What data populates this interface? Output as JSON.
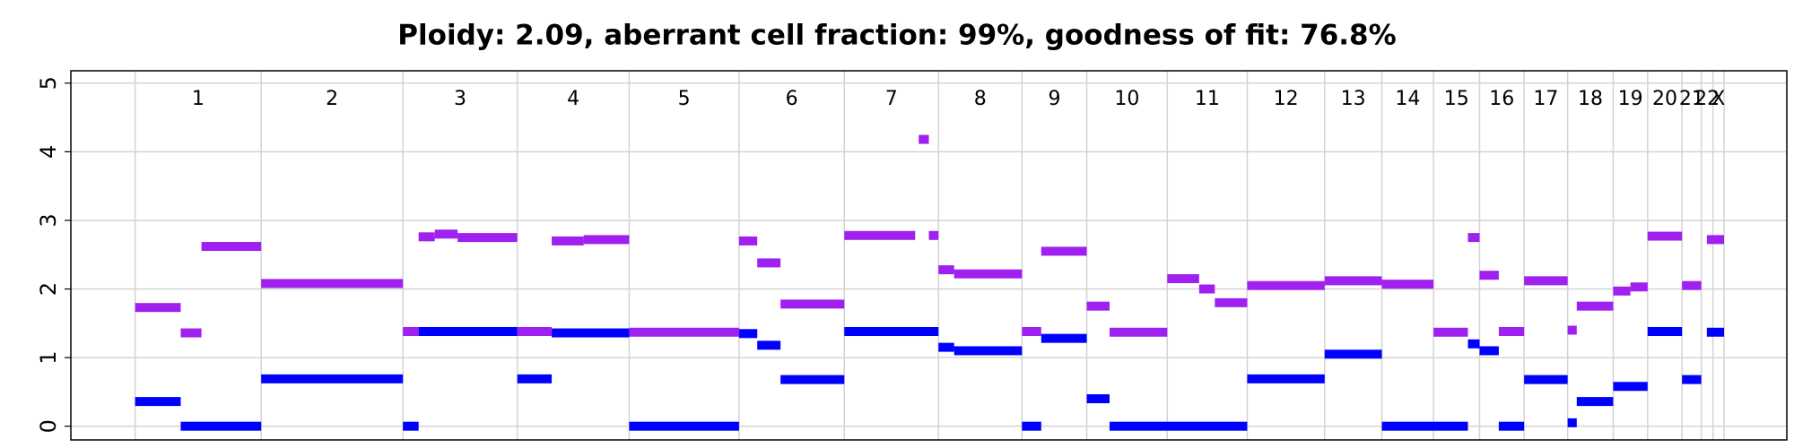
{
  "chart_data": {
    "type": "segment",
    "title": "Ploidy: 2.09, aberrant cell fraction: 99%, goodness of fit: 76.8%",
    "chromosomes": [
      "1",
      "2",
      "3",
      "4",
      "5",
      "6",
      "7",
      "8",
      "9",
      "10",
      "11",
      "12",
      "13",
      "14",
      "15",
      "16",
      "17",
      "18",
      "19",
      "20",
      "21",
      "22",
      "X"
    ],
    "chromosome_bounds": [
      0,
      249,
      529,
      755,
      976,
      1193,
      1401,
      1587,
      1752,
      1880,
      2039,
      2197,
      2350,
      2463,
      2565,
      2656,
      2744,
      2830,
      2920,
      2988,
      3056,
      3094,
      3117,
      3139
    ],
    "xlim": [
      -127,
      3263
    ],
    "ylim": [
      -0.2,
      5.18
    ],
    "yticks": [
      0,
      1,
      2,
      3,
      4,
      5
    ],
    "grid": true,
    "series": [
      {
        "color": "#a020f0",
        "start": [
          0,
          90,
          131,
          249,
          529,
          560,
          592,
          637,
          755,
          823,
          886,
          976,
          1193,
          1229,
          1275,
          1401,
          1548,
          1568,
          1587,
          1618,
          1752,
          1790,
          1880,
          1925,
          2039,
          2102,
          2133,
          2197,
          2350,
          2463,
          2565,
          2633,
          2656,
          2694,
          2744,
          2830,
          2848,
          2920,
          2954,
          2988,
          3056,
          3105
        ],
        "end": [
          90,
          131,
          249,
          529,
          560,
          592,
          637,
          755,
          823,
          886,
          976,
          1193,
          1229,
          1275,
          1401,
          1541,
          1568,
          1587,
          1618,
          1752,
          1790,
          1880,
          1925,
          2039,
          2102,
          2133,
          2197,
          2350,
          2463,
          2565,
          2633,
          2656,
          2694,
          2744,
          2830,
          2848,
          2920,
          2954,
          2988,
          3056,
          3094,
          3139
        ],
        "values": [
          1.73,
          1.36,
          2.62,
          2.08,
          1.38,
          2.76,
          2.8,
          2.75,
          1.38,
          2.7,
          2.72,
          1.37,
          2.7,
          2.38,
          1.78,
          2.78,
          4.18,
          2.78,
          2.28,
          2.22,
          1.38,
          2.55,
          1.75,
          1.37,
          2.15,
          2.0,
          1.8,
          2.05,
          2.12,
          2.07,
          1.37,
          2.75,
          2.2,
          1.38,
          2.12,
          1.4,
          1.75,
          1.97,
          2.03,
          2.77,
          2.05,
          2.72
        ]
      },
      {
        "color": "#0000ff",
        "start": [
          0,
          90,
          249,
          529,
          560,
          755,
          823,
          976,
          1193,
          1229,
          1275,
          1401,
          1587,
          1618,
          1752,
          1790,
          1880,
          1925,
          2197,
          2350,
          2463,
          2633,
          2656,
          2694,
          2744,
          2830,
          2848,
          2920,
          2988,
          3056,
          3105
        ],
        "end": [
          90,
          249,
          529,
          560,
          755,
          823,
          976,
          1193,
          1229,
          1275,
          1401,
          1587,
          1618,
          1752,
          1790,
          1880,
          1925,
          2197,
          2350,
          2463,
          2633,
          2656,
          2694,
          2744,
          2830,
          2848,
          2920,
          2988,
          3056,
          3094,
          3139
        ],
        "values": [
          0.36,
          0,
          0.69,
          0,
          1.38,
          0.69,
          1.36,
          0,
          1.35,
          1.18,
          0.68,
          1.38,
          1.15,
          1.1,
          0,
          1.28,
          0.4,
          0,
          0.69,
          1.05,
          0,
          1.2,
          1.1,
          0,
          0.68,
          0.05,
          0.36,
          0.58,
          1.38,
          0.68,
          1.37
        ]
      }
    ]
  }
}
